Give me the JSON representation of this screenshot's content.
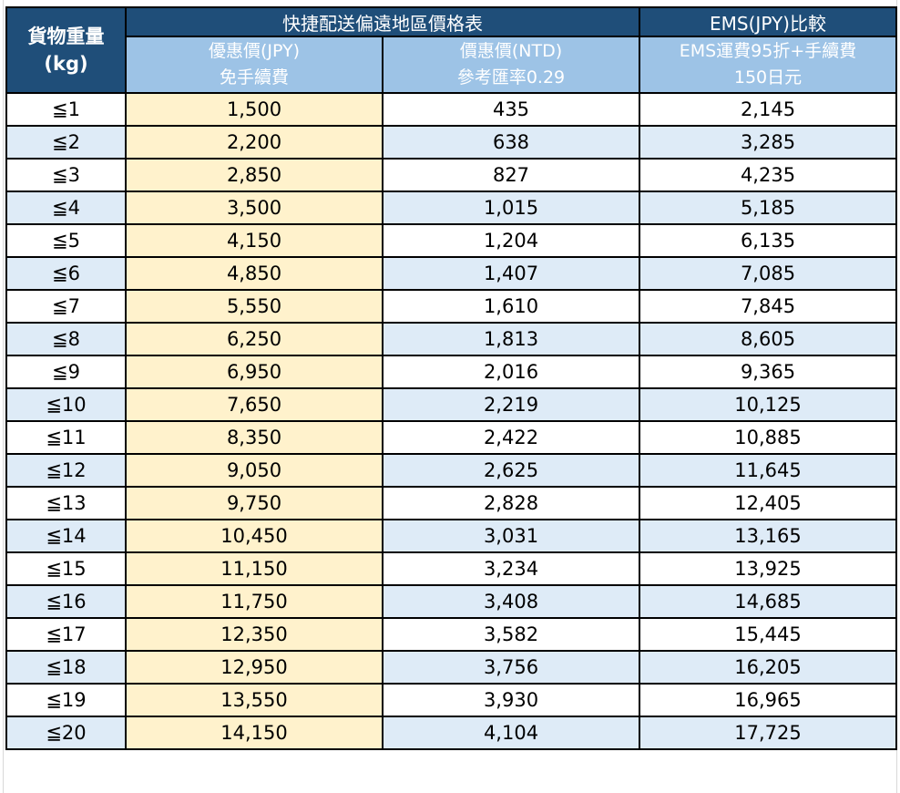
{
  "header": {
    "weight_label_line1": "貨物重量",
    "weight_label_line2": "(kg)",
    "group_title": "快捷配送偏遠地區價格表",
    "ems_title": "EMS(JPY)比較",
    "col_jpy_line1": "優惠價(JPY)",
    "col_jpy_line2": "免手續費",
    "col_ntd_line1": "價惠價(NTD)",
    "col_ntd_line2": "參考匯率0.29",
    "col_ems_line1": "EMS運費95折+手續費",
    "col_ems_line2": "150日元"
  },
  "colors": {
    "header_dark": "#1f4e79",
    "header_light": "#9dc3e6",
    "row_alt": "#deebf7",
    "jpy_column": "#fff2cc"
  },
  "rows": [
    {
      "weight": "≦1",
      "jpy": "1,500",
      "ntd": "435",
      "ems": "2,145"
    },
    {
      "weight": "≦2",
      "jpy": "2,200",
      "ntd": "638",
      "ems": "3,285"
    },
    {
      "weight": "≦3",
      "jpy": "2,850",
      "ntd": "827",
      "ems": "4,235"
    },
    {
      "weight": "≦4",
      "jpy": "3,500",
      "ntd": "1,015",
      "ems": "5,185"
    },
    {
      "weight": "≦5",
      "jpy": "4,150",
      "ntd": "1,204",
      "ems": "6,135"
    },
    {
      "weight": "≦6",
      "jpy": "4,850",
      "ntd": "1,407",
      "ems": "7,085"
    },
    {
      "weight": "≦7",
      "jpy": "5,550",
      "ntd": "1,610",
      "ems": "7,845"
    },
    {
      "weight": "≦8",
      "jpy": "6,250",
      "ntd": "1,813",
      "ems": "8,605"
    },
    {
      "weight": "≦9",
      "jpy": "6,950",
      "ntd": "2,016",
      "ems": "9,365"
    },
    {
      "weight": "≦10",
      "jpy": "7,650",
      "ntd": "2,219",
      "ems": "10,125"
    },
    {
      "weight": "≦11",
      "jpy": "8,350",
      "ntd": "2,422",
      "ems": "10,885"
    },
    {
      "weight": "≦12",
      "jpy": "9,050",
      "ntd": "2,625",
      "ems": "11,645"
    },
    {
      "weight": "≦13",
      "jpy": "9,750",
      "ntd": "2,828",
      "ems": "12,405"
    },
    {
      "weight": "≦14",
      "jpy": "10,450",
      "ntd": "3,031",
      "ems": "13,165"
    },
    {
      "weight": "≦15",
      "jpy": "11,150",
      "ntd": "3,234",
      "ems": "13,925"
    },
    {
      "weight": "≦16",
      "jpy": "11,750",
      "ntd": "3,408",
      "ems": "14,685"
    },
    {
      "weight": "≦17",
      "jpy": "12,350",
      "ntd": "3,582",
      "ems": "15,445"
    },
    {
      "weight": "≦18",
      "jpy": "12,950",
      "ntd": "3,756",
      "ems": "16,205"
    },
    {
      "weight": "≦19",
      "jpy": "13,550",
      "ntd": "3,930",
      "ems": "16,965"
    },
    {
      "weight": "≦20",
      "jpy": "14,150",
      "ntd": "4,104",
      "ems": "17,725"
    }
  ]
}
